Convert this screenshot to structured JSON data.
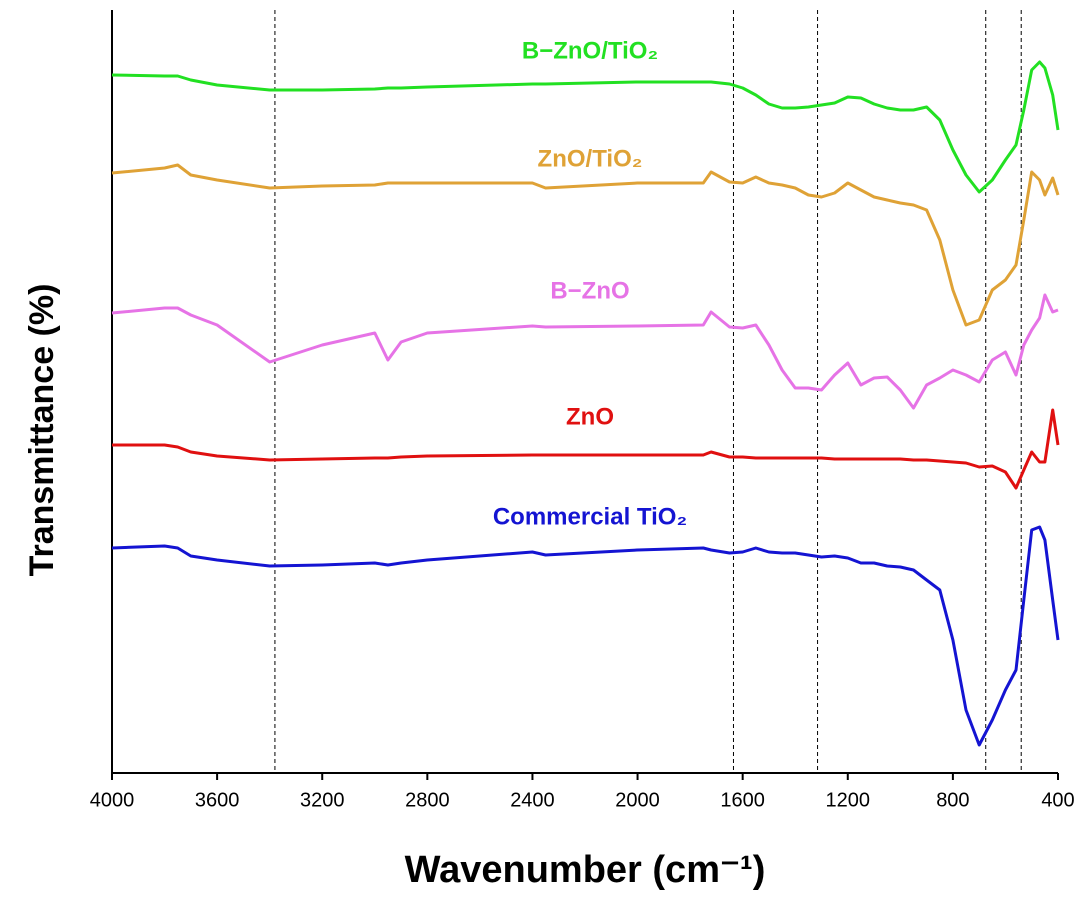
{
  "chart_data": {
    "type": "line",
    "x_label": "Wavenumber (cm⁻¹)",
    "y_label": "Transmittance (%)",
    "xlim": [
      4000,
      400
    ],
    "xticks": [
      4000,
      3600,
      3200,
      2800,
      2400,
      2000,
      1600,
      1200,
      800,
      400
    ],
    "ylim": [
      0,
      763
    ],
    "reference_lines": [
      3380,
      1635,
      1315,
      675,
      540
    ],
    "x": [
      4000,
      3800,
      3750,
      3700,
      3600,
      3400,
      3200,
      3000,
      2950,
      2900,
      2800,
      2400,
      2350,
      2000,
      1750,
      1720,
      1650,
      1600,
      1550,
      1500,
      1450,
      1400,
      1350,
      1300,
      1250,
      1200,
      1150,
      1100,
      1050,
      1000,
      950,
      900,
      850,
      800,
      750,
      700,
      650,
      600,
      560,
      530,
      500,
      470,
      450,
      420,
      400
    ],
    "series": [
      {
        "name": "B−ZnO/TiO₂",
        "color": "#22e022",
        "values": [
          698,
          697,
          697,
          693,
          688,
          683,
          683,
          684,
          685,
          685,
          686,
          689,
          689,
          691,
          691,
          691,
          689,
          685,
          678,
          669,
          665,
          665,
          666,
          668,
          670,
          676,
          675,
          669,
          665,
          663,
          663,
          666,
          653,
          623,
          598,
          581,
          593,
          613,
          628,
          663,
          703,
          711,
          705,
          678,
          643
        ]
      },
      {
        "name": "ZnO/TiO₂",
        "color": "#dfa236",
        "values": [
          600,
          605,
          608,
          598,
          593,
          585,
          587,
          588,
          590,
          590,
          590,
          590,
          585,
          590,
          590,
          601,
          591,
          590,
          596,
          590,
          588,
          585,
          578,
          576,
          580,
          590,
          583,
          576,
          573,
          570,
          568,
          563,
          533,
          483,
          448,
          453,
          483,
          493,
          508,
          553,
          601,
          593,
          578,
          595,
          578
        ]
      },
      {
        "name": "B−ZnO",
        "color": "#e673e6",
        "values": [
          460,
          465,
          465,
          458,
          448,
          411,
          428,
          440,
          413,
          431,
          440,
          447,
          446,
          447,
          448,
          461,
          446,
          445,
          448,
          428,
          403,
          385,
          385,
          383,
          398,
          410,
          388,
          395,
          396,
          383,
          365,
          388,
          395,
          403,
          398,
          391,
          413,
          421,
          398,
          428,
          443,
          455,
          478,
          461,
          463
        ]
      },
      {
        "name": "ZnO",
        "color": "#e01010",
        "values": [
          328,
          328,
          326,
          321,
          317,
          313,
          314,
          315,
          315,
          316,
          317,
          318,
          318,
          318,
          318,
          321,
          316,
          316,
          315,
          315,
          315,
          315,
          315,
          315,
          314,
          314,
          314,
          314,
          314,
          314,
          313,
          313,
          312,
          311,
          310,
          306,
          307,
          301,
          285,
          303,
          321,
          311,
          311,
          363,
          328
        ]
      },
      {
        "name": "Commercial TiO₂",
        "color": "#1414d2",
        "values": [
          225,
          227,
          225,
          217,
          213,
          207,
          208,
          210,
          208,
          210,
          213,
          221,
          218,
          223,
          225,
          223,
          220,
          221,
          225,
          221,
          220,
          220,
          218,
          216,
          217,
          215,
          210,
          210,
          207,
          206,
          203,
          193,
          183,
          133,
          63,
          28,
          53,
          83,
          103,
          173,
          243,
          246,
          233,
          173,
          133
        ]
      }
    ]
  }
}
